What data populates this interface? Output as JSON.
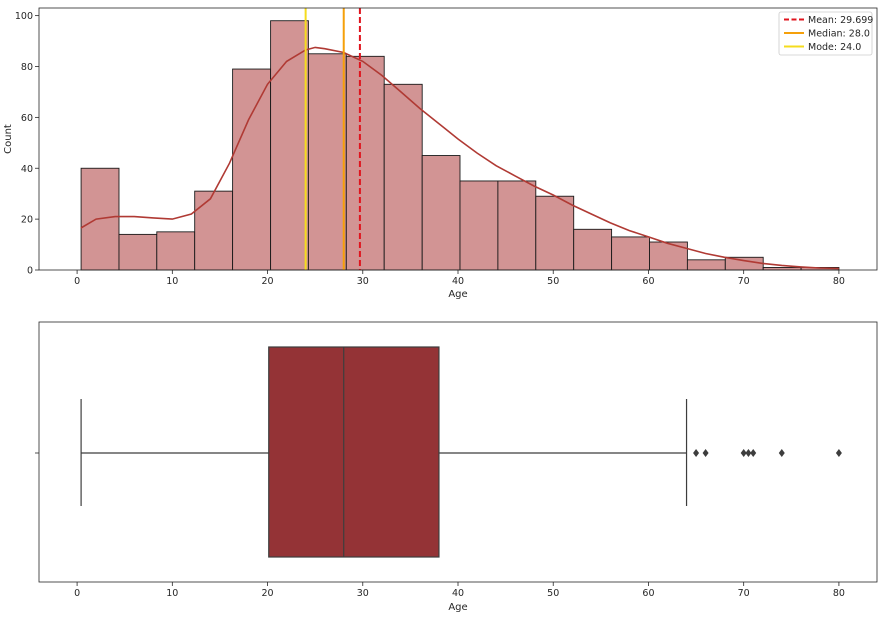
{
  "chart_data": [
    {
      "type": "histogram",
      "xlabel": "Age",
      "ylabel": "Count",
      "xlim": [
        -4,
        84
      ],
      "ylim": [
        0,
        103
      ],
      "xticks": [
        0,
        10,
        20,
        30,
        40,
        50,
        60,
        70,
        80
      ],
      "yticks": [
        0,
        20,
        40,
        60,
        80,
        100
      ],
      "grid": false,
      "bin_edges": [
        0.42,
        4.4,
        8.37,
        12.35,
        16.33,
        20.32,
        24.29,
        28.27,
        32.25,
        36.24,
        40.21,
        44.19,
        48.17,
        52.15,
        56.13,
        60.11,
        64.09,
        68.07,
        72.05,
        76.03,
        80.0
      ],
      "counts": [
        40,
        14,
        15,
        31,
        79,
        98,
        85,
        84,
        73,
        45,
        35,
        35,
        29,
        16,
        13,
        11,
        4,
        5,
        1,
        1
      ],
      "bar_color": "#d29494",
      "kde": {
        "color": "#b03a34",
        "x": [
          0.4,
          2,
          4,
          6,
          8,
          10,
          12,
          14,
          16,
          18,
          20,
          22,
          24,
          25,
          26,
          28,
          30,
          32,
          34,
          36,
          38,
          40,
          42,
          44,
          46,
          48,
          50,
          52,
          54,
          56,
          58,
          60,
          62,
          64,
          66,
          68,
          70,
          72,
          74,
          76,
          78,
          80
        ],
        "y": [
          16.5,
          20,
          21,
          21,
          20.5,
          20,
          22,
          28,
          42,
          59,
          73,
          82,
          86.5,
          87.5,
          87,
          85.5,
          82,
          76.5,
          70,
          63.5,
          57.5,
          51.5,
          46,
          41,
          37,
          33,
          29.5,
          25.5,
          22,
          18.5,
          15.5,
          13,
          10.5,
          8.5,
          6.5,
          5,
          3.7,
          2.6,
          1.8,
          1.2,
          0.8,
          0.6
        ]
      },
      "reference_lines": [
        {
          "label": "Mean: 29.699",
          "value": 29.699,
          "color": "#e0141e",
          "style": "dashed"
        },
        {
          "label": "Median: 28.0",
          "value": 28.0,
          "color": "#f5a00a",
          "style": "solid"
        },
        {
          "label": "Mode: 24.0",
          "value": 24.0,
          "color": "#f5dc1e",
          "style": "solid"
        }
      ],
      "legend_placement": "top-right"
    },
    {
      "type": "box",
      "xlabel": "Age",
      "xlim": [
        -4,
        84
      ],
      "xticks": [
        0,
        10,
        20,
        30,
        40,
        50,
        60,
        70,
        80
      ],
      "ytick_labels": [
        ""
      ],
      "whisker_low": 0.42,
      "q1": 20.125,
      "median": 28.0,
      "q3": 38.0,
      "whisker_high": 64.0,
      "outliers": [
        65,
        66,
        70,
        70.5,
        71,
        74,
        80
      ],
      "box_color": "#943336"
    }
  ]
}
